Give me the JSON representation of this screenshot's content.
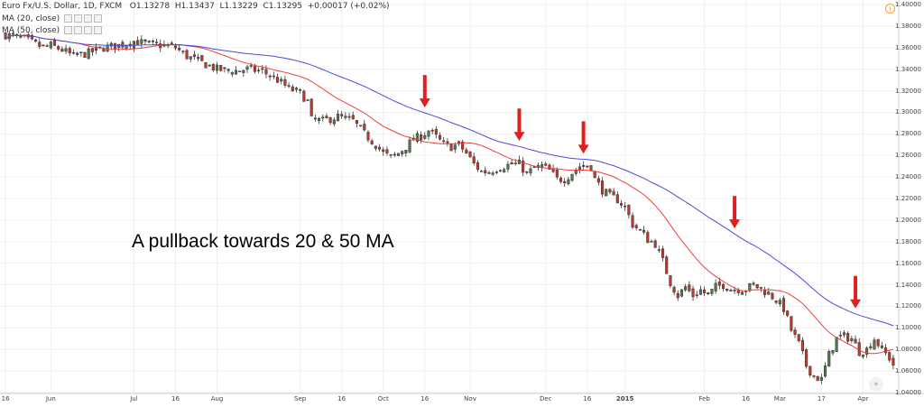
{
  "chart_data": {
    "type": "candlestick",
    "symbol_line": {
      "symbol": "Euro Fx/U.S. Dollar, 1D, FXCM",
      "open": "O1.13278",
      "high": "H1.13437",
      "low": "L1.13229",
      "close": "C1.13295",
      "change": "+0.00017 (+0.02%)"
    },
    "indicators": [
      {
        "label": "MA (20, close)",
        "color": "#e8403c"
      },
      {
        "label": "MA (50, close)",
        "color": "#4a4ae0"
      }
    ],
    "ylim": [
      1.04,
      1.4
    ],
    "y_ticks": [
      "1.40000",
      "1.38000",
      "1.36000",
      "1.34000",
      "1.32000",
      "1.30000",
      "1.28000",
      "1.26000",
      "1.24000",
      "1.22000",
      "1.20000",
      "1.18000",
      "1.16000",
      "1.14000",
      "1.12000",
      "1.10000",
      "1.08000",
      "1.06000",
      "1.04000"
    ],
    "x_ticks": [
      {
        "label": "16",
        "bar": 0
      },
      {
        "label": "Jun",
        "bar": 12
      },
      {
        "label": "Jul",
        "bar": 34
      },
      {
        "label": "16",
        "bar": 45
      },
      {
        "label": "Aug",
        "bar": 56
      },
      {
        "label": "Sep",
        "bar": 78
      },
      {
        "label": "16",
        "bar": 89
      },
      {
        "label": "Oct",
        "bar": 100
      },
      {
        "label": "16",
        "bar": 111
      },
      {
        "label": "Nov",
        "bar": 123
      },
      {
        "label": "Dec",
        "bar": 143
      },
      {
        "label": "16",
        "bar": 154
      },
      {
        "label": "2015",
        "bar": 164,
        "bold": true
      },
      {
        "label": "Feb",
        "bar": 185
      },
      {
        "label": "16",
        "bar": 196
      },
      {
        "label": "Mar",
        "bar": 205
      },
      {
        "label": "17",
        "bar": 216
      },
      {
        "label": "Apr",
        "bar": 227
      }
    ],
    "bar_count": 236,
    "close_anchors": [
      [
        0,
        1.372
      ],
      [
        5,
        1.368
      ],
      [
        10,
        1.36
      ],
      [
        12,
        1.362
      ],
      [
        15,
        1.358
      ],
      [
        18,
        1.352
      ],
      [
        22,
        1.355
      ],
      [
        26,
        1.36
      ],
      [
        30,
        1.362
      ],
      [
        34,
        1.366
      ],
      [
        38,
        1.363
      ],
      [
        42,
        1.362
      ],
      [
        45,
        1.36
      ],
      [
        48,
        1.352
      ],
      [
        52,
        1.346
      ],
      [
        56,
        1.34
      ],
      [
        60,
        1.338
      ],
      [
        64,
        1.34
      ],
      [
        68,
        1.338
      ],
      [
        72,
        1.33
      ],
      [
        75,
        1.322
      ],
      [
        78,
        1.318
      ],
      [
        80,
        1.31
      ],
      [
        81,
        1.293
      ],
      [
        84,
        1.292
      ],
      [
        88,
        1.296
      ],
      [
        92,
        1.292
      ],
      [
        95,
        1.28
      ],
      [
        98,
        1.27
      ],
      [
        100,
        1.262
      ],
      [
        102,
        1.258
      ],
      [
        104,
        1.262
      ],
      [
        106,
        1.268
      ],
      [
        108,
        1.275
      ],
      [
        110,
        1.278
      ],
      [
        112,
        1.283
      ],
      [
        114,
        1.277
      ],
      [
        116,
        1.27
      ],
      [
        118,
        1.268
      ],
      [
        120,
        1.27
      ],
      [
        122,
        1.262
      ],
      [
        124,
        1.252
      ],
      [
        126,
        1.245
      ],
      [
        128,
        1.245
      ],
      [
        130,
        1.248
      ],
      [
        132,
        1.25
      ],
      [
        134,
        1.252
      ],
      [
        136,
        1.252
      ],
      [
        138,
        1.243
      ],
      [
        140,
        1.248
      ],
      [
        142,
        1.25
      ],
      [
        144,
        1.246
      ],
      [
        146,
        1.238
      ],
      [
        148,
        1.238
      ],
      [
        150,
        1.244
      ],
      [
        152,
        1.25
      ],
      [
        154,
        1.25
      ],
      [
        155,
        1.25
      ],
      [
        156,
        1.238
      ],
      [
        158,
        1.228
      ],
      [
        160,
        1.222
      ],
      [
        162,
        1.219
      ],
      [
        164,
        1.212
      ],
      [
        166,
        1.196
      ],
      [
        168,
        1.19
      ],
      [
        170,
        1.182
      ],
      [
        172,
        1.178
      ],
      [
        174,
        1.162
      ],
      [
        176,
        1.142
      ],
      [
        178,
        1.13
      ],
      [
        180,
        1.138
      ],
      [
        182,
        1.13
      ],
      [
        184,
        1.135
      ],
      [
        186,
        1.13
      ],
      [
        188,
        1.138
      ],
      [
        190,
        1.14
      ],
      [
        192,
        1.136
      ],
      [
        194,
        1.136
      ],
      [
        196,
        1.136
      ],
      [
        198,
        1.14
      ],
      [
        200,
        1.136
      ],
      [
        202,
        1.132
      ],
      [
        204,
        1.126
      ],
      [
        206,
        1.118
      ],
      [
        208,
        1.098
      ],
      [
        210,
        1.085
      ],
      [
        212,
        1.065
      ],
      [
        214,
        1.055
      ],
      [
        216,
        1.052
      ],
      [
        218,
        1.075
      ],
      [
        220,
        1.09
      ],
      [
        222,
        1.092
      ],
      [
        224,
        1.09
      ],
      [
        226,
        1.078
      ],
      [
        228,
        1.08
      ],
      [
        230,
        1.09
      ],
      [
        232,
        1.08
      ],
      [
        234,
        1.072
      ],
      [
        235,
        1.066
      ]
    ],
    "ma_period_fast": 20,
    "ma_period_slow": 50,
    "pullback_arrows_at_bars": [
      111,
      136,
      153,
      193,
      225
    ],
    "annotation": "A pullback towards 20 & 50 MA",
    "grid": true,
    "colors": {
      "up": "#4f7a4f",
      "down": "#c0392b",
      "arrow": "#e02020"
    }
  }
}
